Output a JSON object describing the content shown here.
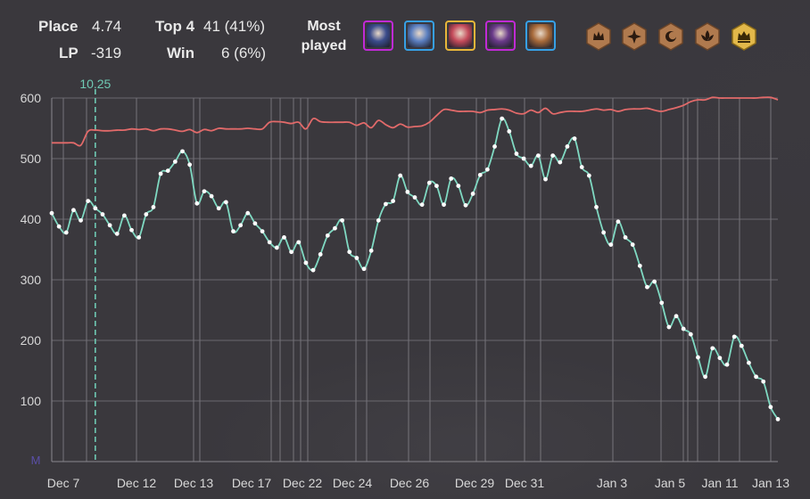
{
  "stats": {
    "place_label": "Place",
    "place_value": "4.74",
    "lp_label": "LP",
    "lp_value": "-319",
    "top4_label": "Top 4",
    "top4_value": "41 (41%)",
    "win_label": "Win",
    "win_value": "6 (6%)"
  },
  "most_played": {
    "label_line1": "Most",
    "label_line2": "played",
    "champions": [
      {
        "icon": "champion-portrait-1-icon",
        "border": "#c02ad6",
        "tint": "#3b4c8c"
      },
      {
        "icon": "champion-portrait-2-icon",
        "border": "#37a0e6",
        "tint": "#5b7fc0"
      },
      {
        "icon": "champion-portrait-3-icon",
        "border": "#e8b63a",
        "tint": "#c44a5a"
      },
      {
        "icon": "champion-portrait-4-icon",
        "border": "#c02ad6",
        "tint": "#6a3a8a"
      },
      {
        "icon": "champion-portrait-5-icon",
        "border": "#37a0e6",
        "tint": "#a86a3a"
      }
    ],
    "traits": [
      {
        "icon": "crown-trait-icon",
        "tier": "bronze"
      },
      {
        "icon": "shuriken-trait-icon",
        "tier": "bronze"
      },
      {
        "icon": "crescent-trait-icon",
        "tier": "bronze"
      },
      {
        "icon": "lotus-trait-icon",
        "tier": "bronze"
      },
      {
        "icon": "royal-crown-trait-icon",
        "tier": "gold"
      }
    ]
  },
  "chart_data": {
    "type": "line",
    "ylim": [
      0,
      600
    ],
    "yticks": [
      100,
      200,
      300,
      400,
      500,
      600
    ],
    "x_labels": [
      "Dec 7",
      "Dec 12",
      "Dec 13",
      "Dec 17",
      "Dec 22",
      "Dec 24",
      "Dec 26",
      "Dec 29",
      "Dec 31",
      "Jan 3",
      "Jan 5",
      "Jan 11",
      "Jan 13"
    ],
    "rank_marker_label": "M",
    "patch_marker": {
      "label": "10.25",
      "game_index": 6
    },
    "series": [
      {
        "color": "#7fd9c2",
        "values": [
          410,
          388,
          378,
          415,
          398,
          430,
          418,
          408,
          390,
          376,
          406,
          382,
          370,
          408,
          420,
          475,
          480,
          495,
          512,
          490,
          426,
          446,
          438,
          418,
          428,
          380,
          390,
          410,
          393,
          380,
          362,
          353,
          370,
          346,
          362,
          328,
          316,
          342,
          373,
          385,
          398,
          346,
          336,
          318,
          348,
          398,
          425,
          430,
          472,
          445,
          436,
          424,
          460,
          455,
          424,
          467,
          455,
          423,
          442,
          473,
          482,
          520,
          566,
          545,
          508,
          500,
          488,
          505,
          466,
          505,
          494,
          520,
          533,
          486,
          472,
          420,
          378,
          358,
          396,
          370,
          358,
          323,
          288,
          297,
          262,
          222,
          240,
          219,
          210,
          172,
          140,
          187,
          171,
          160,
          206,
          191,
          163,
          140,
          132,
          90,
          70
        ]
      },
      {
        "color": "#e26a6a",
        "values": [
          526,
          526,
          526,
          526,
          522,
          545,
          547,
          546,
          546,
          547,
          547,
          549,
          548,
          549,
          546,
          549,
          549,
          547,
          545,
          548,
          543,
          548,
          546,
          550,
          549,
          549,
          549,
          550,
          549,
          549,
          560,
          561,
          560,
          558,
          560,
          549,
          566,
          561,
          560,
          560,
          560,
          560,
          555,
          559,
          551,
          563,
          556,
          551,
          557,
          552,
          553,
          554,
          560,
          571,
          581,
          580,
          578,
          578,
          578,
          576,
          580,
          581,
          582,
          580,
          575,
          574,
          580,
          576,
          583,
          574,
          576,
          578,
          578,
          578,
          580,
          582,
          580,
          581,
          578,
          581,
          582,
          582,
          583,
          580,
          578,
          581,
          584,
          588,
          594,
          597,
          597,
          601,
          600,
          600,
          600,
          600,
          600,
          600,
          601,
          601,
          597
        ]
      }
    ]
  }
}
